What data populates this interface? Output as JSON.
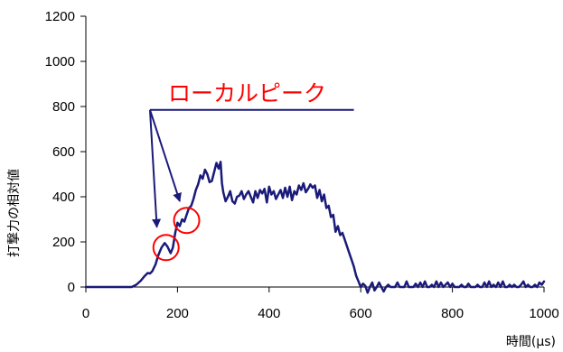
{
  "chart_data": {
    "type": "line",
    "title": "",
    "xlabel": "時間(μs)",
    "ylabel": "打撃力の相対値",
    "xlim": [
      0,
      1000
    ],
    "ylim": [
      0,
      1200
    ],
    "x_ticks": [
      0,
      200,
      400,
      600,
      800,
      1000
    ],
    "y_ticks": [
      0,
      200,
      400,
      600,
      800,
      1000,
      1200
    ],
    "x_tick_labels": [
      "0",
      "200",
      "400",
      "600",
      "800",
      "1000"
    ],
    "y_tick_labels": [
      "0",
      "200",
      "400",
      "600",
      "800",
      "1000",
      "1200"
    ],
    "grid": false,
    "series": [
      {
        "color": "#1a1a7a",
        "x": [
          0,
          100,
          110,
          120,
          128,
          135,
          140,
          145,
          152,
          158,
          165,
          172,
          178,
          185,
          190,
          195,
          200,
          205,
          210,
          215,
          220,
          225,
          230,
          235,
          240,
          245,
          250,
          255,
          260,
          265,
          270,
          275,
          280,
          285,
          290,
          294,
          297,
          300,
          305,
          310,
          315,
          320,
          325,
          330,
          335,
          340,
          345,
          350,
          355,
          360,
          365,
          370,
          375,
          380,
          385,
          390,
          395,
          400,
          405,
          410,
          415,
          420,
          425,
          430,
          435,
          440,
          445,
          450,
          455,
          460,
          465,
          470,
          475,
          480,
          485,
          490,
          495,
          500,
          505,
          510,
          515,
          520,
          525,
          530,
          535,
          540,
          545,
          550,
          555,
          560,
          565,
          570,
          575,
          580,
          585,
          590,
          595,
          600,
          605,
          610,
          615,
          620,
          625,
          630,
          635,
          640,
          645,
          650,
          655,
          660,
          665,
          670,
          675,
          680,
          685,
          690,
          695,
          700,
          705,
          710,
          715,
          720,
          725,
          730,
          735,
          740,
          745,
          750,
          755,
          760,
          765,
          770,
          775,
          780,
          785,
          790,
          795,
          800,
          805,
          810,
          815,
          820,
          825,
          830,
          835,
          840,
          845,
          850,
          855,
          860,
          865,
          870,
          875,
          880,
          885,
          890,
          895,
          900,
          905,
          910,
          915,
          920,
          925,
          930,
          935,
          940,
          945,
          950,
          955,
          960,
          965,
          970,
          975,
          980,
          985,
          990,
          995,
          1000
        ],
        "y": [
          0,
          0,
          10,
          28,
          48,
          62,
          60,
          70,
          100,
          140,
          175,
          195,
          180,
          150,
          175,
          240,
          285,
          270,
          300,
          290,
          320,
          350,
          360,
          390,
          430,
          455,
          495,
          480,
          520,
          500,
          465,
          470,
          510,
          550,
          525,
          555,
          460,
          420,
          380,
          400,
          425,
          380,
          370,
          400,
          405,
          425,
          390,
          410,
          425,
          400,
          375,
          425,
          395,
          430,
          415,
          435,
          375,
          445,
          410,
          425,
          390,
          410,
          430,
          395,
          440,
          400,
          445,
          385,
          425,
          410,
          450,
          430,
          460,
          420,
          435,
          455,
          440,
          450,
          395,
          430,
          380,
          410,
          350,
          360,
          310,
          320,
          245,
          270,
          230,
          240,
          210,
          180,
          150,
          120,
          90,
          50,
          25,
          0,
          15,
          5,
          -25,
          0,
          20,
          -15,
          0,
          20,
          0,
          -20,
          0,
          10,
          0,
          0,
          0,
          20,
          0,
          0,
          0,
          25,
          0,
          0,
          0,
          15,
          0,
          20,
          0,
          25,
          0,
          0,
          10,
          0,
          25,
          0,
          20,
          0,
          10,
          20,
          0,
          15,
          0,
          0,
          0,
          10,
          0,
          0,
          15,
          0,
          0,
          0,
          10,
          0,
          0,
          20,
          0,
          25,
          0,
          10,
          0,
          20,
          0,
          25,
          0,
          0,
          10,
          0,
          10,
          0,
          0,
          10,
          25,
          0,
          10,
          0,
          0,
          10,
          0,
          20,
          10,
          25
        ]
      }
    ],
    "annotations": [
      {
        "text": "ローカルピーク",
        "color": "#ff0000",
        "anchor": [
          140,
          785
        ],
        "hline_to_x": 585,
        "arrow_targets": [
          [
            155,
            265
          ],
          [
            205,
            380
          ]
        ]
      }
    ],
    "circles": [
      {
        "cx": 175,
        "cy": 175,
        "color": "#ff0000"
      },
      {
        "cx": 220,
        "cy": 295,
        "color": "#ff0000"
      }
    ]
  }
}
